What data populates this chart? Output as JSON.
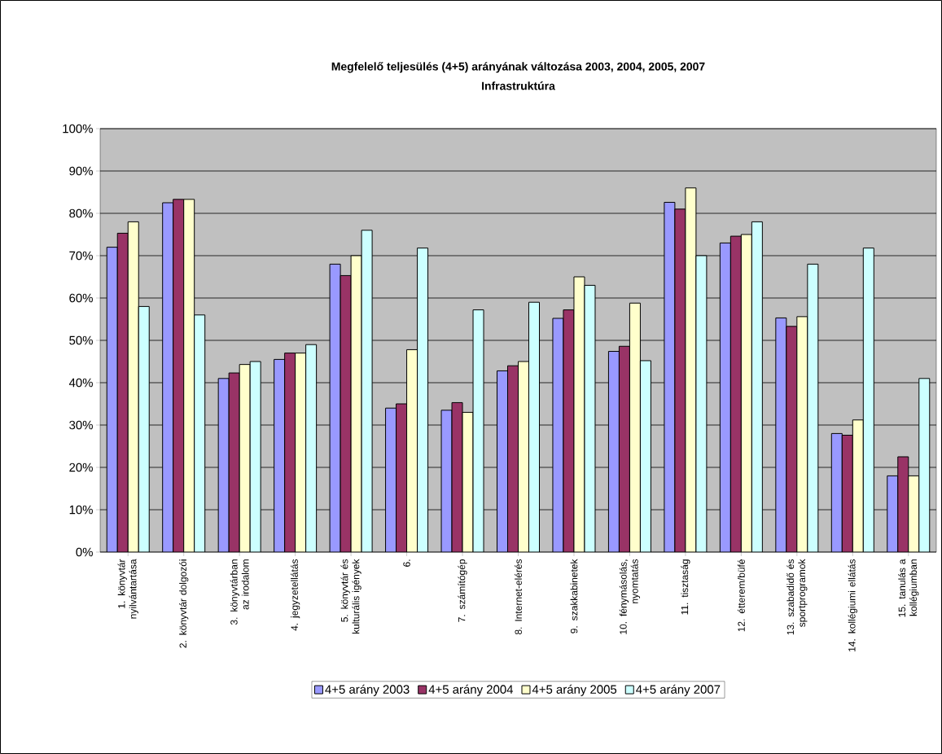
{
  "chart_data": {
    "type": "bar",
    "title": "Megfelelő teljesülés (4+5) arányának változása 2003, 2004, 2005, 2007",
    "subtitle": "Infrastruktúra",
    "categories": [
      "1. könyvtár nyilvántartása",
      "2. könyvtár dolgozói",
      "3. könyvtárban az irodalom",
      "4. jegyzetellátás",
      "5. könyvtár és kulturális igények",
      "6.",
      "7. számítógép",
      "8. Internet-elérés",
      "9. szakkabinetek",
      "10. fénymásolás, nyomtatás",
      "11. tisztaság",
      "12. étterem/büfé",
      "13. szabadidő és sportprogramok",
      "14. kollégiumi ellátás",
      "15. tanulás a kollégiumban"
    ],
    "series": [
      {
        "name": "4+5 arány 2003",
        "color": "#9999ff",
        "values": [
          72,
          82.5,
          41,
          45.5,
          68,
          34,
          33.5,
          42.8,
          55.2,
          47.4,
          82.6,
          73,
          55.3,
          28,
          18
        ]
      },
      {
        "name": "4+5 arány 2004",
        "color": "#993366",
        "values": [
          75.3,
          83.3,
          42.3,
          47,
          65.3,
          35,
          35.3,
          44,
          57.2,
          48.6,
          81,
          74.6,
          53.3,
          27.6,
          22.5
        ]
      },
      {
        "name": "4+5 arány 2005",
        "color": "#ffffcc",
        "values": [
          78,
          83.3,
          44.3,
          47,
          70,
          47.8,
          33,
          45,
          65,
          58.8,
          86,
          75,
          55.6,
          31.2,
          18
        ]
      },
      {
        "name": "4+5 arány 2007",
        "color": "#ccffff",
        "values": [
          58,
          56,
          45,
          49,
          76,
          71.8,
          57.2,
          59,
          63,
          45.2,
          70,
          78,
          68,
          71.8,
          41
        ]
      }
    ],
    "ylim": [
      0,
      100
    ],
    "yticks": [
      {
        "value": 0,
        "label": "0%"
      },
      {
        "value": 10,
        "label": "10%"
      },
      {
        "value": 20,
        "label": "20%"
      },
      {
        "value": 30,
        "label": "30%"
      },
      {
        "value": 40,
        "label": "40%"
      },
      {
        "value": 50,
        "label": "50%"
      },
      {
        "value": 60,
        "label": "60%"
      },
      {
        "value": 70,
        "label": "70%"
      },
      {
        "value": 80,
        "label": "80%"
      },
      {
        "value": 90,
        "label": "90%"
      },
      {
        "value": 100,
        "label": "100%"
      }
    ],
    "grid": "y",
    "legend": "bottom"
  }
}
